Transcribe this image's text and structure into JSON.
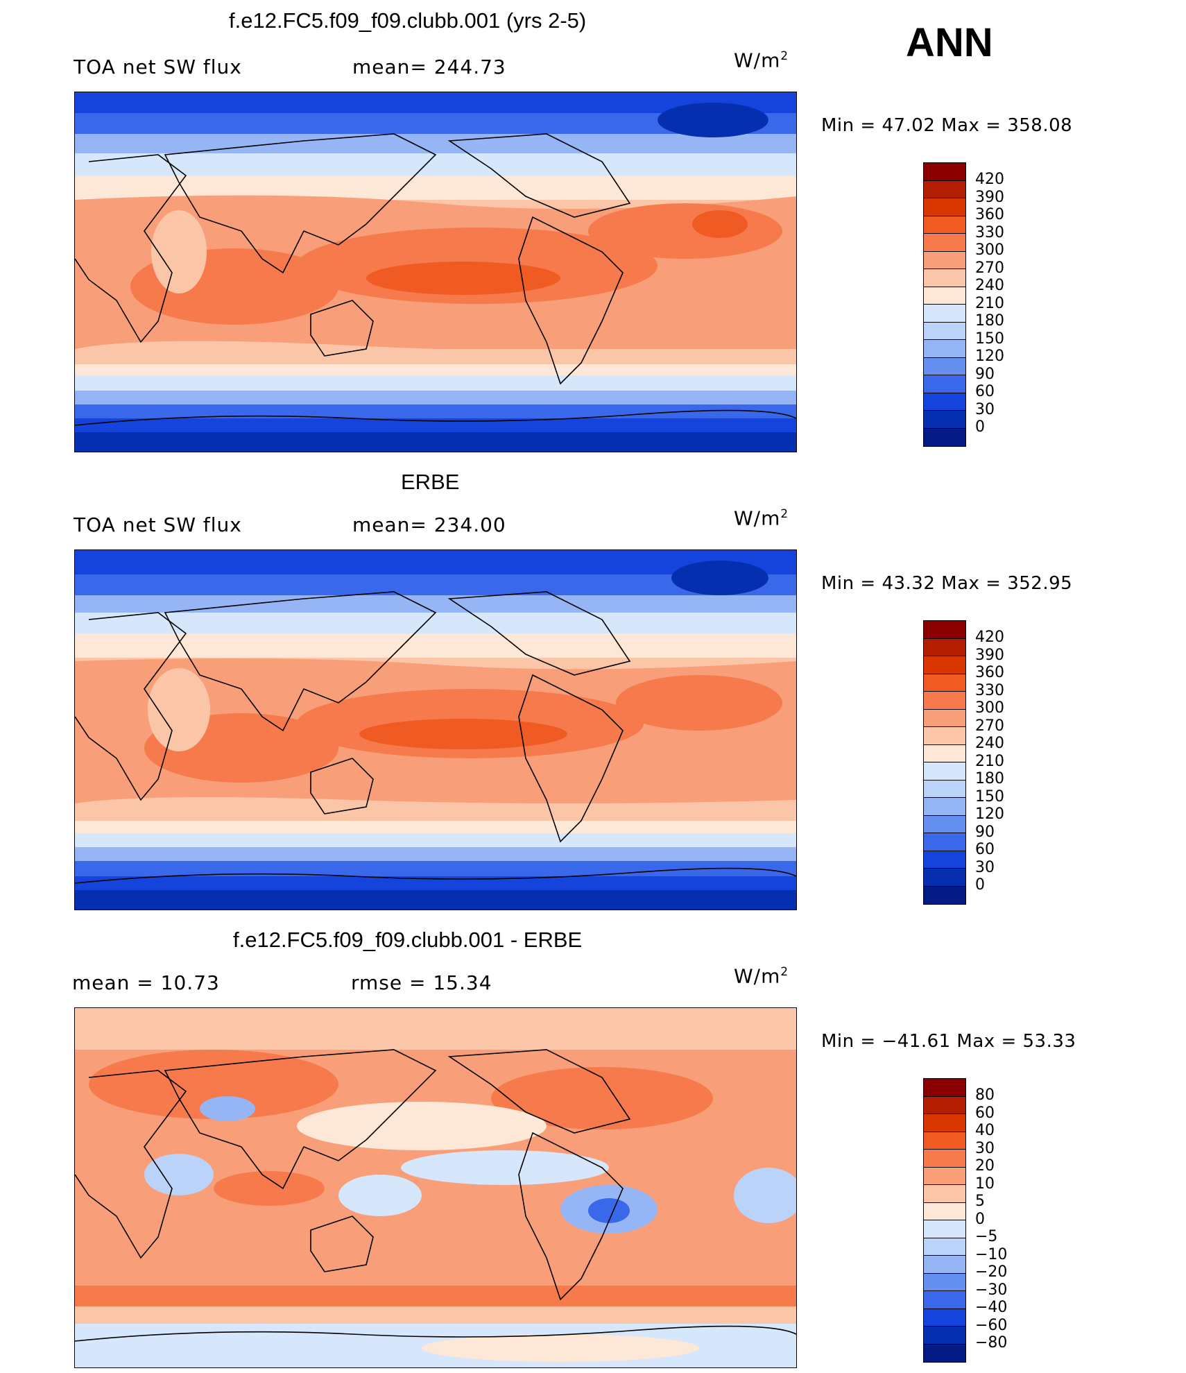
{
  "season": "ANN",
  "units_main": "W/m",
  "units_sup": "2",
  "panels": [
    {
      "title": "f.e12.FC5.f09_f09.clubb.001 (yrs 2-5)",
      "left_label": "TOA net SW flux",
      "center_label": "mean= 244.73",
      "min_max": "Min =   47.02  Max  =  358.08",
      "colorbar": {
        "labels": [
          "420",
          "390",
          "360",
          "330",
          "300",
          "270",
          "240",
          "210",
          "180",
          "150",
          "120",
          "90",
          "60",
          "30",
          "0"
        ],
        "colors": [
          "#8b0000",
          "#b41e00",
          "#d93600",
          "#f05a23",
          "#f67a4c",
          "#f89f79",
          "#fbc6a8",
          "#fde8d7",
          "#d6e6fb",
          "#bcd3f9",
          "#95b5f5",
          "#6590ef",
          "#3a68ea",
          "#1444dc",
          "#062fb0",
          "#041a85"
        ]
      }
    },
    {
      "title": "ERBE",
      "left_label": "TOA net SW flux",
      "center_label": "mean= 234.00",
      "min_max": "Min =   43.32  Max  =  352.95",
      "colorbar": {
        "labels": [
          "420",
          "390",
          "360",
          "330",
          "300",
          "270",
          "240",
          "210",
          "180",
          "150",
          "120",
          "90",
          "60",
          "30",
          "0"
        ],
        "colors": [
          "#8b0000",
          "#b41e00",
          "#d93600",
          "#f05a23",
          "#f67a4c",
          "#f89f79",
          "#fbc6a8",
          "#fde8d7",
          "#d6e6fb",
          "#bcd3f9",
          "#95b5f5",
          "#6590ef",
          "#3a68ea",
          "#1444dc",
          "#062fb0",
          "#041a85"
        ]
      }
    },
    {
      "title": "f.e12.FC5.f09_f09.clubb.001 - ERBE",
      "left_label": "mean  =    10.73",
      "center_label": "rmse  =    15.34",
      "min_max": "Min  = −41.61  Max  =    53.33",
      "colorbar": {
        "labels": [
          "80",
          "60",
          "40",
          "30",
          "20",
          "10",
          "5",
          "0",
          "−5",
          "−10",
          "−20",
          "−30",
          "−40",
          "−60",
          "−80"
        ],
        "colors": [
          "#8b0000",
          "#b41e00",
          "#d93600",
          "#f05a23",
          "#f67a4c",
          "#f89f79",
          "#fbc6a8",
          "#fde8d7",
          "#d6e6fb",
          "#bcd3f9",
          "#95b5f5",
          "#6590ef",
          "#3a68ea",
          "#1444dc",
          "#062fb0",
          "#041a85"
        ]
      }
    }
  ]
}
